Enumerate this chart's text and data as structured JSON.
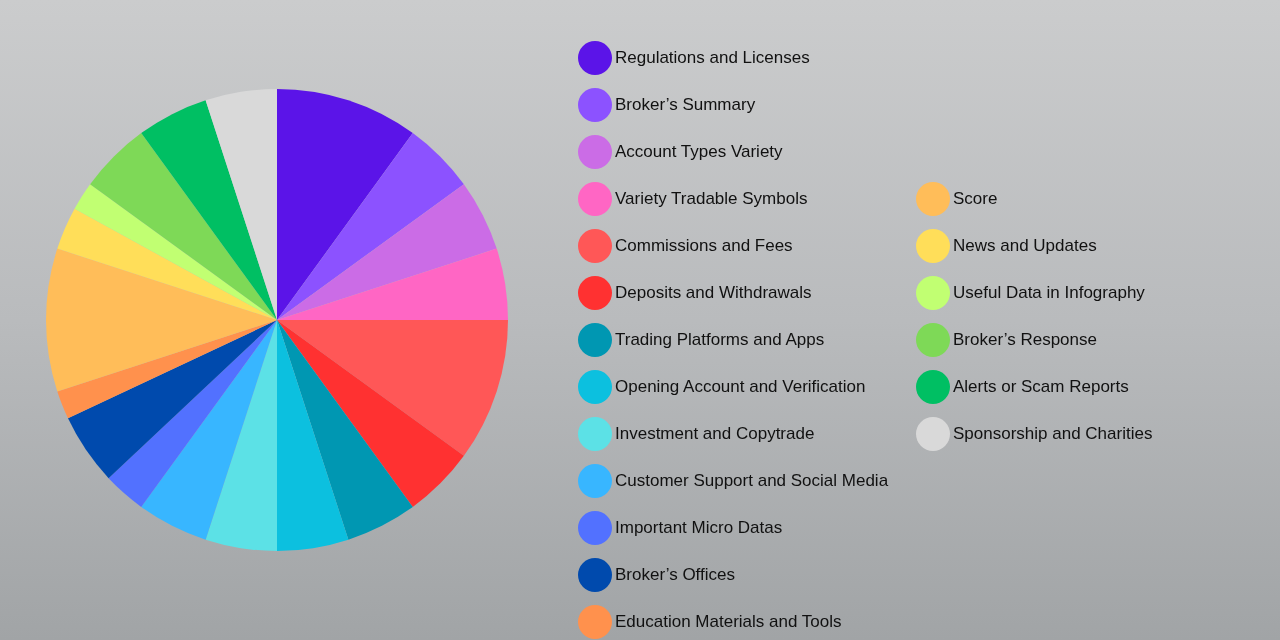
{
  "chart_data": {
    "type": "pie",
    "categories": [
      "Regulations and Licenses",
      "Broker’s Summary",
      "Account Types Variety",
      "Variety Tradable Symbols",
      "Commissions and Fees",
      "Deposits and Withdrawals",
      "Trading Platforms and Apps",
      "Opening Account and Verification",
      "Investment and Copytrade",
      "Customer Support and Social Media",
      "Important Micro Datas",
      "Broker’s Offices",
      "Education Materials and Tools",
      "Score",
      "News and Updates",
      "Useful Data in Infography",
      "Broker’s Response",
      "Alerts or Scam Reports",
      "Sponsorship and Charities"
    ],
    "values": [
      10,
      5,
      5,
      5,
      10,
      5,
      5,
      5,
      5,
      5,
      3,
      5,
      2,
      10,
      3,
      2,
      5,
      5,
      5
    ],
    "colors": [
      "#5b14e8",
      "#8c52ff",
      "#cb6ce6",
      "#ff66c4",
      "#ff5757",
      "#ff3131",
      "#0097b2",
      "#0cc0df",
      "#5ce1e6",
      "#38b6ff",
      "#5271ff",
      "#004aad",
      "#ff914d",
      "#ffbd59",
      "#ffde59",
      "#c1ff72",
      "#7ed957",
      "#00bf63",
      "#d9d9d9"
    ],
    "legend": "right"
  }
}
